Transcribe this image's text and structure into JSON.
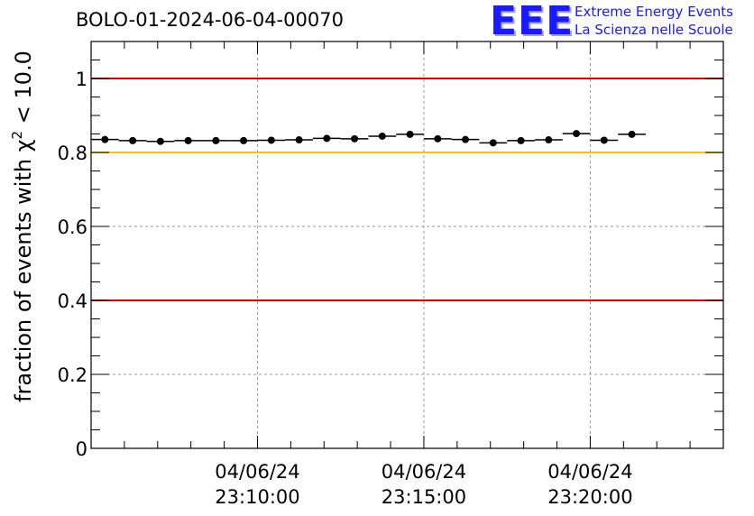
{
  "header": {
    "title": "BOLO-01-2024-06-04-00070"
  },
  "logo": {
    "mark": "EEE",
    "line1": "Extreme Energy Events",
    "line2": "La Scienza nelle Scuole",
    "color": "#1a1aff"
  },
  "chart_data": {
    "type": "scatter",
    "ylabel_prefix": "fraction of events with ",
    "ylabel_symbol": "χ",
    "ylabel_sup": "2",
    "ylabel_suffix": " < 10.0",
    "xlabel": "",
    "x_unit": "time",
    "xlim": [
      "04/06/24 23:05:00",
      "04/06/24 23:24:00"
    ],
    "ylim": [
      0,
      1.1
    ],
    "y_ticks": [
      0,
      0.2,
      0.4,
      0.6,
      0.8,
      1
    ],
    "y_tick_labels": [
      "0",
      "0.2",
      "0.4",
      "0.6",
      "0.8",
      "1"
    ],
    "x_ticks": [
      {
        "time": "04/06/24 23:10:00",
        "date_label": "04/06/24",
        "time_label": "23:10:00"
      },
      {
        "time": "04/06/24 23:15:00",
        "date_label": "04/06/24",
        "time_label": "23:15:00"
      },
      {
        "time": "04/06/24 23:20:00",
        "date_label": "04/06/24",
        "time_label": "23:20:00"
      }
    ],
    "grid": true,
    "reference_lines": [
      {
        "y": 1.0,
        "color": "#e00000"
      },
      {
        "y": 0.8,
        "color": "#ffc000"
      },
      {
        "y": 0.4,
        "color": "#e00000"
      }
    ],
    "series": [
      {
        "marker_color": "#000000",
        "bin_width_seconds": 50,
        "points": [
          {
            "x": "04/06/24 23:05:25",
            "y": 0.835
          },
          {
            "x": "04/06/24 23:06:15",
            "y": 0.832
          },
          {
            "x": "04/06/24 23:07:05",
            "y": 0.83
          },
          {
            "x": "04/06/24 23:07:55",
            "y": 0.832
          },
          {
            "x": "04/06/24 23:08:45",
            "y": 0.832
          },
          {
            "x": "04/06/24 23:09:35",
            "y": 0.832
          },
          {
            "x": "04/06/24 23:10:25",
            "y": 0.833
          },
          {
            "x": "04/06/24 23:11:15",
            "y": 0.834
          },
          {
            "x": "04/06/24 23:12:05",
            "y": 0.838
          },
          {
            "x": "04/06/24 23:12:55",
            "y": 0.837
          },
          {
            "x": "04/06/24 23:13:45",
            "y": 0.844
          },
          {
            "x": "04/06/24 23:14:35",
            "y": 0.849
          },
          {
            "x": "04/06/24 23:15:25",
            "y": 0.837
          },
          {
            "x": "04/06/24 23:16:15",
            "y": 0.835
          },
          {
            "x": "04/06/24 23:17:05",
            "y": 0.826
          },
          {
            "x": "04/06/24 23:17:55",
            "y": 0.832
          },
          {
            "x": "04/06/24 23:18:45",
            "y": 0.834
          },
          {
            "x": "04/06/24 23:19:35",
            "y": 0.851
          },
          {
            "x": "04/06/24 23:20:25",
            "y": 0.833
          },
          {
            "x": "04/06/24 23:21:15",
            "y": 0.849
          }
        ]
      }
    ]
  }
}
